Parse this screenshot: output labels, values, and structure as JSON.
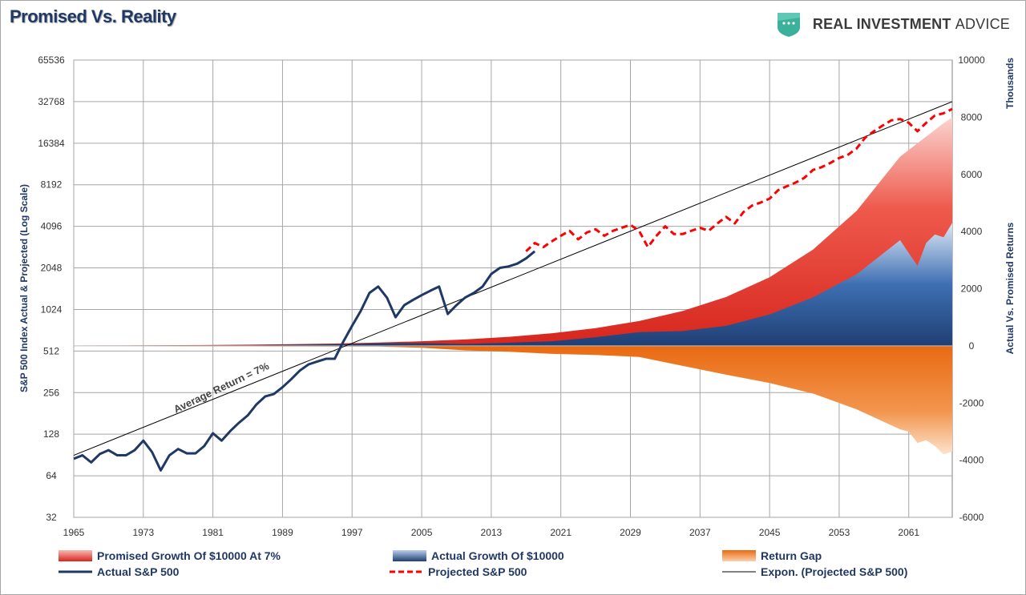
{
  "header": {
    "title": "Promised Vs. Reality"
  },
  "brand": {
    "name_bold": "REAL INVESTMENT",
    "name_light": "ADVICE"
  },
  "colors": {
    "navy": "#1f3864",
    "red": "#ff0000",
    "promised": "#e8463a",
    "actual": "#2e5c9c",
    "gap": "#ef7d22",
    "brand_green": "#3bb19b"
  },
  "chart_data": {
    "type": "line",
    "title": "Promised Vs. Reality",
    "x_ticks": [
      "1965",
      "1973",
      "1981",
      "1989",
      "1997",
      "2005",
      "2013",
      "2021",
      "2029",
      "2037",
      "2045",
      "2053",
      "2061"
    ],
    "xlim": [
      1965,
      2066
    ],
    "y_left": {
      "label": "S&P 500 Index Actual & Projected (Log Scale)",
      "scale": "log2",
      "ticks": [
        "65536",
        "32768",
        "16384",
        "8192",
        "4096",
        "2048",
        "1024",
        "512",
        "256",
        "128",
        "64",
        "32"
      ],
      "range": [
        32,
        65536
      ]
    },
    "y_right": {
      "label": "Actual Vs. Promised Returns",
      "unit": "Thousands",
      "ticks": [
        "10000",
        "8000",
        "6000",
        "4000",
        "2000",
        "0",
        "-2000",
        "-4000",
        "-6000"
      ],
      "range": [
        -6000,
        10000
      ]
    },
    "annotation": "Average Return = 7%",
    "grid": true,
    "legend_position": "bottom",
    "legend": [
      "Promised Growth Of $10000 At 7%",
      "Actual Growth Of $10000",
      "Return Gap",
      "Actual S&P 500",
      "Projected S&P 500",
      "Expon. (Projected S&P 500)"
    ],
    "series": [
      {
        "name": "Actual S&P 500",
        "axis": "left",
        "x": [
          1965,
          1966,
          1967,
          1968,
          1969,
          1970,
          1971,
          1972,
          1973,
          1974,
          1975,
          1976,
          1977,
          1978,
          1979,
          1980,
          1981,
          1982,
          1983,
          1984,
          1985,
          1986,
          1987,
          1988,
          1989,
          1990,
          1991,
          1992,
          1993,
          1994,
          1995,
          1996,
          1997,
          1998,
          1999,
          2000,
          2001,
          2002,
          2003,
          2004,
          2005,
          2006,
          2007,
          2008,
          2009,
          2010,
          2011,
          2012,
          2013,
          2014,
          2015,
          2016,
          2017,
          2018
        ],
        "y": [
          85,
          90,
          80,
          92,
          98,
          90,
          90,
          98,
          115,
          95,
          70,
          90,
          100,
          93,
          93,
          105,
          130,
          115,
          135,
          155,
          175,
          210,
          240,
          250,
          280,
          320,
          370,
          410,
          430,
          450,
          450,
          600,
          780,
          1000,
          1350,
          1500,
          1250,
          900,
          1100,
          1200,
          1300,
          1400,
          1500,
          950,
          1100,
          1250,
          1350,
          1500,
          1850,
          2050,
          2100,
          2200,
          2400,
          2700
        ]
      },
      {
        "name": "Projected S&P 500",
        "axis": "left",
        "x": [
          2017,
          2018,
          2019,
          2020,
          2021,
          2022,
          2023,
          2024,
          2025,
          2026,
          2027,
          2028,
          2029,
          2030,
          2031,
          2032,
          2033,
          2034,
          2035,
          2036,
          2037,
          2038,
          2039,
          2040,
          2041,
          2042,
          2043,
          2044,
          2045,
          2046,
          2047,
          2048,
          2049,
          2050,
          2051,
          2052,
          2053,
          2054,
          2055,
          2056,
          2057,
          2058,
          2059,
          2060,
          2061,
          2062,
          2063,
          2064,
          2065,
          2066
        ],
        "y": [
          2700,
          3100,
          2900,
          3200,
          3500,
          3800,
          3300,
          3700,
          3900,
          3500,
          3800,
          4000,
          4200,
          3800,
          2900,
          3500,
          4100,
          3600,
          3600,
          3800,
          4000,
          3800,
          4300,
          4800,
          4300,
          5200,
          5800,
          6100,
          6500,
          7500,
          8000,
          8500,
          9200,
          10500,
          11000,
          11800,
          12800,
          13500,
          15000,
          18000,
          20000,
          22000,
          24000,
          24500,
          23000,
          20000,
          23000,
          26000,
          27000,
          29000
        ]
      },
      {
        "name": "Expon. (Projected S&P 500)",
        "axis": "left",
        "trend": "exponential",
        "x": [
          1965,
          2066
        ],
        "y": [
          90,
          32768
        ]
      },
      {
        "name": "Promised Growth Of $10000 At 7%",
        "axis": "right",
        "type": "area",
        "x": [
          1965,
          1970,
          1975,
          1980,
          1985,
          1990,
          1995,
          2000,
          2005,
          2010,
          2015,
          2020,
          2025,
          2030,
          2035,
          2040,
          2045,
          2050,
          2055,
          2060,
          2065,
          2066
        ],
        "y": [
          10,
          15,
          21,
          29,
          41,
          58,
          81,
          114,
          160,
          224,
          315,
          440,
          620,
          870,
          1220,
          1710,
          2400,
          3370,
          4720,
          6620,
          7790,
          8000
        ]
      },
      {
        "name": "Actual Growth Of $10000",
        "axis": "right",
        "type": "area",
        "x": [
          1965,
          1970,
          1975,
          1980,
          1985,
          1990,
          1995,
          2000,
          2005,
          2010,
          2015,
          2020,
          2025,
          2030,
          2035,
          2040,
          2045,
          2050,
          2055,
          2060,
          2062,
          2063,
          2064,
          2065,
          2066
        ],
        "y": [
          10,
          12,
          9,
          13,
          22,
          38,
          55,
          90,
          95,
          65,
          110,
          160,
          300,
          480,
          520,
          700,
          1100,
          1700,
          2500,
          3700,
          2800,
          3600,
          3900,
          3800,
          4300
        ]
      },
      {
        "name": "Return Gap",
        "axis": "right",
        "type": "area",
        "x": [
          1965,
          1970,
          1975,
          1980,
          1985,
          1990,
          1995,
          2000,
          2005,
          2010,
          2015,
          2020,
          2025,
          2030,
          2035,
          2040,
          2045,
          2050,
          2055,
          2060,
          2061,
          2062,
          2063,
          2064,
          2065,
          2066
        ],
        "y": [
          0,
          -3,
          -12,
          -16,
          -19,
          -20,
          -26,
          -24,
          -65,
          -159,
          -205,
          -280,
          -320,
          -390,
          -700,
          -1010,
          -1300,
          -1670,
          -2220,
          -2920,
          -3000,
          -3400,
          -3300,
          -3500,
          -3800,
          -3700
        ]
      }
    ]
  }
}
